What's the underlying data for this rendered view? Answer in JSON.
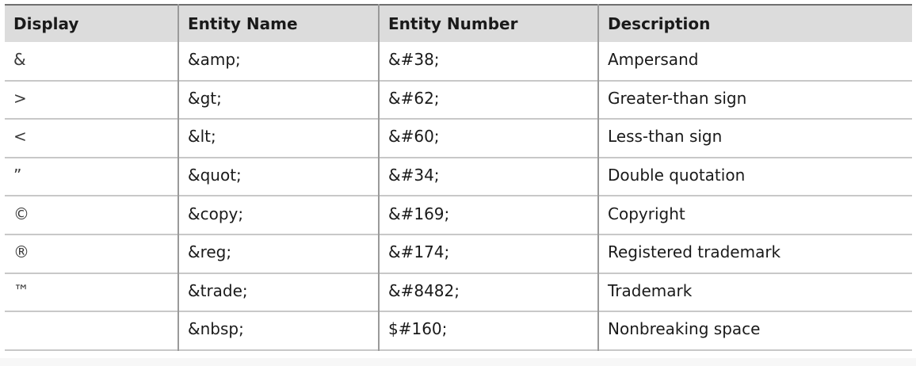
{
  "table": {
    "headers": {
      "display": "Display",
      "entity_name": "Entity Name",
      "entity_number": "Entity Number",
      "description": "Description"
    },
    "rows": [
      {
        "display": "&",
        "entity_name": "&amp;",
        "entity_number": "&#38;",
        "description": "Ampersand"
      },
      {
        "display": ">",
        "entity_name": "&gt;",
        "entity_number": "&#62;",
        "description": "Greater-than sign"
      },
      {
        "display": "<",
        "entity_name": "&lt;",
        "entity_number": "&#60;",
        "description": "Less-than sign"
      },
      {
        "display": "”",
        "entity_name": "&quot;",
        "entity_number": "&#34;",
        "description": "Double quotation"
      },
      {
        "display": "©",
        "entity_name": "&copy;",
        "entity_number": "&#169;",
        "description": "Copyright"
      },
      {
        "display": "®",
        "entity_name": "&reg;",
        "entity_number": "&#174;",
        "description": "Registered trademark"
      },
      {
        "display": "™",
        "entity_name": "&trade;",
        "entity_number": "&#8482;",
        "description": "Trademark"
      },
      {
        "display": "",
        "entity_name": "&nbsp;",
        "entity_number": "$#160;",
        "description": "Nonbreaking space"
      }
    ]
  },
  "colors": {
    "header_background": "#dcdcdc",
    "column_divider": "#9a9a9a",
    "row_divider": "#c8c8c8"
  }
}
